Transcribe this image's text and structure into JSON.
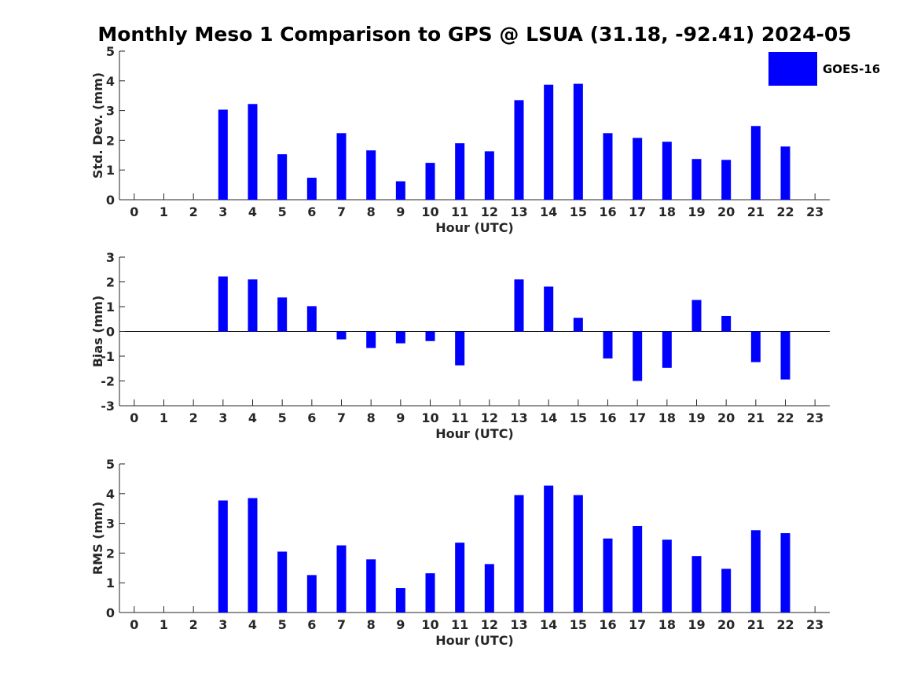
{
  "chart_data": {
    "title": "Monthly Meso 1 Comparison to GPS @ LSUA (31.18, -92.41) 2024-05",
    "type": "bar",
    "legend": {
      "label": "GOES-16",
      "color": "#0000ff",
      "placement": "top-right"
    },
    "panels": [
      {
        "type": "bar",
        "ylabel": "Std. Dev. (mm)",
        "xlabel": "Hour (UTC)",
        "ylim": [
          0,
          5
        ],
        "yticks": [
          "0",
          "1",
          "2",
          "3",
          "4",
          "5"
        ],
        "categories": [
          "0",
          "1",
          "2",
          "3",
          "4",
          "5",
          "6",
          "7",
          "8",
          "9",
          "10",
          "11",
          "12",
          "13",
          "14",
          "15",
          "16",
          "17",
          "18",
          "19",
          "20",
          "21",
          "22",
          "23"
        ],
        "values": [
          null,
          null,
          null,
          3.03,
          3.22,
          1.53,
          0.74,
          2.24,
          1.66,
          0.62,
          1.24,
          1.9,
          1.63,
          3.35,
          3.87,
          3.9,
          2.24,
          2.08,
          1.95,
          1.37,
          1.34,
          2.48,
          1.79,
          null
        ],
        "series_name": "GOES-16"
      },
      {
        "type": "bar",
        "ylabel": "Bias (mm)",
        "xlabel": "Hour (UTC)",
        "ylim": [
          -3,
          3
        ],
        "yticks": [
          "-3",
          "-2",
          "-1",
          "0",
          "1",
          "2",
          "3"
        ],
        "categories": [
          "0",
          "1",
          "2",
          "3",
          "4",
          "5",
          "6",
          "7",
          "8",
          "9",
          "10",
          "11",
          "12",
          "13",
          "14",
          "15",
          "16",
          "17",
          "18",
          "19",
          "20",
          "21",
          "22",
          "23"
        ],
        "values": [
          null,
          null,
          null,
          2.22,
          2.1,
          1.37,
          1.02,
          -0.32,
          -0.67,
          -0.48,
          -0.39,
          -1.37,
          null,
          2.1,
          1.81,
          0.55,
          -1.09,
          -2.0,
          -1.47,
          1.27,
          0.62,
          -1.24,
          -1.94,
          null
        ],
        "series_name": "GOES-16"
      },
      {
        "type": "bar",
        "ylabel": "RMS (mm)",
        "xlabel": "Hour (UTC)",
        "ylim": [
          0,
          5
        ],
        "yticks": [
          "0",
          "1",
          "2",
          "3",
          "4",
          "5"
        ],
        "categories": [
          "0",
          "1",
          "2",
          "3",
          "4",
          "5",
          "6",
          "7",
          "8",
          "9",
          "10",
          "11",
          "12",
          "13",
          "14",
          "15",
          "16",
          "17",
          "18",
          "19",
          "20",
          "21",
          "22",
          "23"
        ],
        "values": [
          null,
          null,
          null,
          3.77,
          3.85,
          2.05,
          1.26,
          2.26,
          1.79,
          0.82,
          1.32,
          2.35,
          1.63,
          3.95,
          4.27,
          3.95,
          2.49,
          2.91,
          2.45,
          1.9,
          1.47,
          2.77,
          2.67,
          null
        ],
        "series_name": "GOES-16"
      }
    ]
  }
}
